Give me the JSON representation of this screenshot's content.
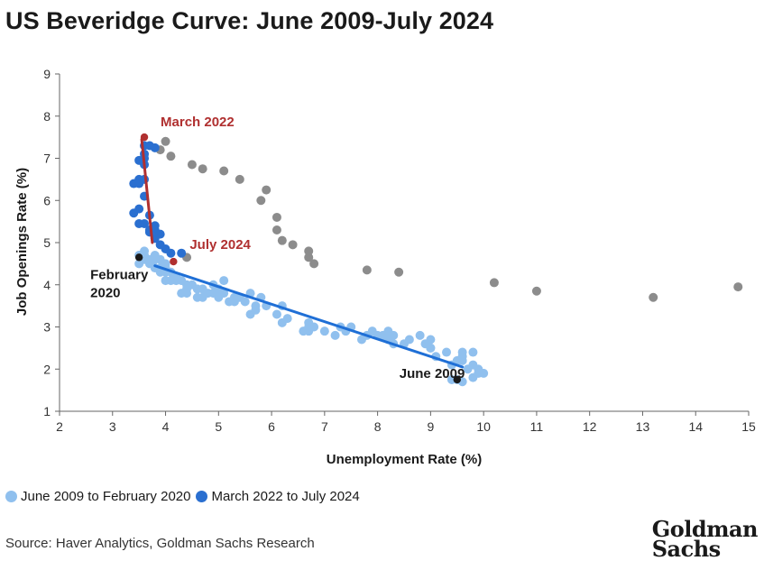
{
  "title": "US Beveridge Curve: June 2009-July 2024",
  "legend": [
    {
      "label": "June 2009 to February 2020",
      "color": "#90C0EE"
    },
    {
      "label": "March 2022 to July 2024",
      "color": "#2A6FD0"
    }
  ],
  "source": "Source: Haver Analytics, Goldman Sachs Research",
  "logo": {
    "line1": "Goldman",
    "line2": "Sachs"
  },
  "chart_data": {
    "type": "scatter",
    "xlabel": "Unemployment Rate (%)",
    "ylabel": "Job Openings Rate (%)",
    "xlim": [
      2,
      15
    ],
    "ylim": [
      1,
      9
    ],
    "xticks": [
      2,
      3,
      4,
      5,
      6,
      7,
      8,
      9,
      10,
      11,
      12,
      13,
      14,
      15
    ],
    "yticks": [
      1,
      2,
      3,
      4,
      5,
      6,
      7,
      8,
      9
    ],
    "grid": false,
    "legend_position": "bottom-left",
    "colors": {
      "light": "#90C0EE",
      "dark": "#2A6FD0",
      "gray": "#8C8C8C",
      "red": "#B03030",
      "black": "#1a1a1a",
      "fit_blue": "#1F6FD6",
      "fit_red": "#B03030"
    },
    "series": [
      {
        "name": "June 2009 to February 2020",
        "color": "#90C0EE",
        "points": [
          [
            9.5,
            1.75
          ],
          [
            9.6,
            1.7
          ],
          [
            9.4,
            1.75
          ],
          [
            9.8,
            1.8
          ],
          [
            9.9,
            1.9
          ],
          [
            10.0,
            1.9
          ],
          [
            9.9,
            2.0
          ],
          [
            9.8,
            2.1
          ],
          [
            9.7,
            2.0
          ],
          [
            9.6,
            2.3
          ],
          [
            9.5,
            2.2
          ],
          [
            9.4,
            2.1
          ],
          [
            9.6,
            2.4
          ],
          [
            9.8,
            2.4
          ],
          [
            9.3,
            2.4
          ],
          [
            9.1,
            2.3
          ],
          [
            9.0,
            2.5
          ],
          [
            9.0,
            2.7
          ],
          [
            9.0,
            2.5
          ],
          [
            8.9,
            2.6
          ],
          [
            8.8,
            2.8
          ],
          [
            8.6,
            2.7
          ],
          [
            8.5,
            2.6
          ],
          [
            8.3,
            2.6
          ],
          [
            8.2,
            2.9
          ],
          [
            8.1,
            2.8
          ],
          [
            8.2,
            2.7
          ],
          [
            8.0,
            2.8
          ],
          [
            7.9,
            2.9
          ],
          [
            7.8,
            2.8
          ],
          [
            7.7,
            2.7
          ],
          [
            7.5,
            3.0
          ],
          [
            7.4,
            2.9
          ],
          [
            7.3,
            3.0
          ],
          [
            7.2,
            2.8
          ],
          [
            7.0,
            2.9
          ],
          [
            6.8,
            3.0
          ],
          [
            6.7,
            3.1
          ],
          [
            6.6,
            2.9
          ],
          [
            6.7,
            2.9
          ],
          [
            6.3,
            3.2
          ],
          [
            6.2,
            3.5
          ],
          [
            6.2,
            3.1
          ],
          [
            6.1,
            3.3
          ],
          [
            5.9,
            3.5
          ],
          [
            5.8,
            3.7
          ],
          [
            5.7,
            3.4
          ],
          [
            5.6,
            3.3
          ],
          [
            5.6,
            3.8
          ],
          [
            5.5,
            3.6
          ],
          [
            5.4,
            3.7
          ],
          [
            5.3,
            3.7
          ],
          [
            5.2,
            3.6
          ],
          [
            5.1,
            3.8
          ],
          [
            5.1,
            4.1
          ],
          [
            5.0,
            3.7
          ],
          [
            5.0,
            3.9
          ],
          [
            4.9,
            4.0
          ],
          [
            4.8,
            3.8
          ],
          [
            4.7,
            3.9
          ],
          [
            4.7,
            3.7
          ],
          [
            4.6,
            3.7
          ],
          [
            4.5,
            4.0
          ],
          [
            4.4,
            3.9
          ],
          [
            4.4,
            3.8
          ],
          [
            4.3,
            4.1
          ],
          [
            4.3,
            3.8
          ],
          [
            4.2,
            4.1
          ],
          [
            4.1,
            4.1
          ],
          [
            4.0,
            4.1
          ],
          [
            4.0,
            4.3
          ],
          [
            3.9,
            4.4
          ],
          [
            4.0,
            4.5
          ],
          [
            3.9,
            4.3
          ],
          [
            3.8,
            4.6
          ],
          [
            3.8,
            4.4
          ],
          [
            3.7,
            4.5
          ],
          [
            3.6,
            4.7
          ],
          [
            3.6,
            4.8
          ],
          [
            3.5,
            4.5
          ],
          [
            3.5,
            4.7
          ],
          [
            3.6,
            4.6
          ],
          [
            3.7,
            4.6
          ],
          [
            3.8,
            4.7
          ],
          [
            3.9,
            4.6
          ],
          [
            4.0,
            4.4
          ],
          [
            4.1,
            4.3
          ],
          [
            4.2,
            4.2
          ],
          [
            4.4,
            4.0
          ],
          [
            4.6,
            3.9
          ],
          [
            4.9,
            3.8
          ],
          [
            5.3,
            3.6
          ],
          [
            5.7,
            3.5
          ],
          [
            6.7,
            3.0
          ],
          [
            8.3,
            2.8
          ],
          [
            9.6,
            2.2
          ]
        ]
      },
      {
        "name": "March 2022 to July 2024",
        "color": "#2A6FD0",
        "points": [
          [
            3.6,
            7.3
          ],
          [
            3.7,
            7.3
          ],
          [
            3.8,
            7.25
          ],
          [
            3.6,
            7.1
          ],
          [
            3.6,
            7.0
          ],
          [
            3.5,
            6.95
          ],
          [
            3.6,
            6.85
          ],
          [
            3.5,
            6.5
          ],
          [
            3.6,
            6.5
          ],
          [
            3.4,
            6.4
          ],
          [
            3.5,
            6.4
          ],
          [
            3.6,
            6.1
          ],
          [
            3.5,
            5.8
          ],
          [
            3.4,
            5.7
          ],
          [
            3.7,
            5.65
          ],
          [
            3.5,
            5.45
          ],
          [
            3.6,
            5.45
          ],
          [
            3.8,
            5.4
          ],
          [
            3.7,
            5.3
          ],
          [
            3.8,
            5.3
          ],
          [
            3.9,
            5.2
          ],
          [
            3.8,
            5.1
          ],
          [
            3.9,
            4.95
          ],
          [
            4.0,
            4.85
          ],
          [
            4.1,
            4.75
          ],
          [
            4.3,
            4.75
          ],
          [
            3.7,
            5.25
          ]
        ]
      },
      {
        "name": "",
        "color": "#8C8C8C",
        "points": [
          [
            14.8,
            3.95
          ],
          [
            13.2,
            3.7
          ],
          [
            11.0,
            3.85
          ],
          [
            10.2,
            4.05
          ],
          [
            8.4,
            4.3
          ],
          [
            7.8,
            4.35
          ],
          [
            6.8,
            4.5
          ],
          [
            6.7,
            4.65
          ],
          [
            6.7,
            4.8
          ],
          [
            6.4,
            4.95
          ],
          [
            6.2,
            5.05
          ],
          [
            6.1,
            5.3
          ],
          [
            6.1,
            5.6
          ],
          [
            5.8,
            6.0
          ],
          [
            5.9,
            6.25
          ],
          [
            5.4,
            6.5
          ],
          [
            5.1,
            6.7
          ],
          [
            4.7,
            6.75
          ],
          [
            4.5,
            6.85
          ],
          [
            4.1,
            7.05
          ],
          [
            4.0,
            7.4
          ],
          [
            3.9,
            7.2
          ],
          [
            4.4,
            4.65
          ]
        ]
      }
    ],
    "fit_lines": [
      {
        "color": "#1F6FD6",
        "from": [
          3.8,
          4.45
        ],
        "to": [
          9.6,
          2.05
        ]
      },
      {
        "color": "#B03030",
        "from": [
          3.55,
          7.45
        ],
        "to": [
          3.75,
          5.0
        ]
      }
    ],
    "highlights": [
      {
        "x": 3.6,
        "y": 7.5,
        "color": "#B03030",
        "label": "March 2022",
        "label_color": "#B03030",
        "dx": 18,
        "dy": -12,
        "anchor": "start"
      },
      {
        "x": 4.15,
        "y": 4.55,
        "color": "#B03030",
        "label": "July 2024",
        "label_color": "#B03030",
        "dx": 18,
        "dy": -14,
        "anchor": "start"
      },
      {
        "x": 3.5,
        "y": 4.65,
        "color": "#1a1a1a",
        "label": "February",
        "label2": "2020",
        "label_color": "#1a1a1a",
        "dx": -54,
        "dy": 24,
        "anchor": "start"
      },
      {
        "x": 9.5,
        "y": 1.75,
        "color": "#1a1a1a",
        "label": "June 2009",
        "label_color": "#1a1a1a",
        "dx": -64,
        "dy": -2,
        "anchor": "start"
      }
    ]
  }
}
